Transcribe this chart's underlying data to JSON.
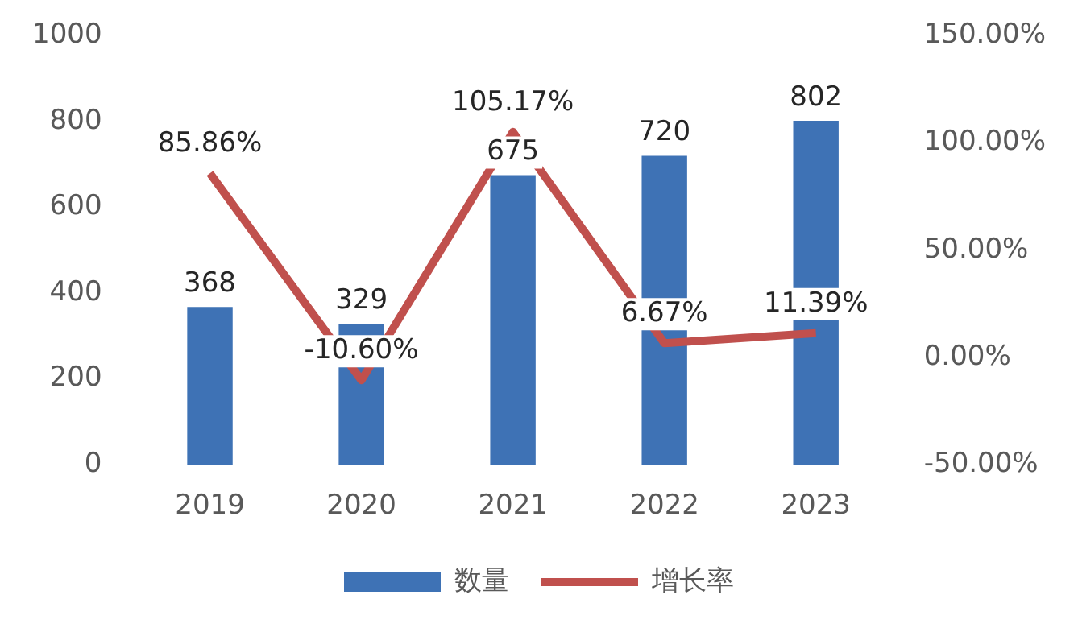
{
  "chart_data": {
    "type": "bar",
    "categories": [
      "2019",
      "2020",
      "2021",
      "2022",
      "2023"
    ],
    "series": [
      {
        "name": "数量",
        "color": "#3e72b5",
        "values": [
          368,
          329,
          675,
          720,
          802
        ],
        "value_labels": [
          "368",
          "329",
          "675",
          "720",
          "802"
        ]
      },
      {
        "name": "增长率",
        "type": "line",
        "axis": "y2",
        "color": "#c0504d",
        "values": [
          85.86,
          -10.6,
          105.17,
          6.67,
          11.39
        ],
        "value_labels": [
          "85.86%",
          "-10.60%",
          "105.17%",
          "6.67%",
          "11.39%"
        ]
      }
    ],
    "ylim": [
      0,
      1000
    ],
    "yticks": [
      0,
      200,
      400,
      600,
      800,
      1000
    ],
    "y2lim": [
      -50,
      150
    ],
    "y2ticks": [
      {
        "value": -50,
        "label": "-50.00%"
      },
      {
        "value": 0,
        "label": "0.00%"
      },
      {
        "value": 50,
        "label": "50.00%"
      },
      {
        "value": 100,
        "label": "100.00%"
      },
      {
        "value": 150,
        "label": "150.00%"
      }
    ],
    "grid": false,
    "legend": "bottom",
    "marker": "none"
  }
}
